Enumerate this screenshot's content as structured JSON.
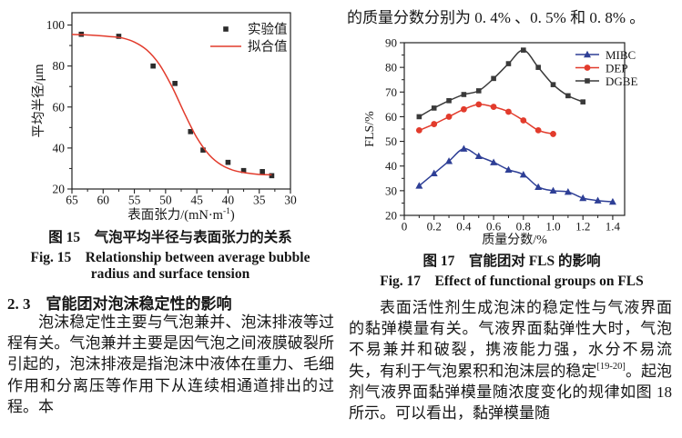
{
  "left_column": {
    "caption_cn": "图 15　气泡平均半径与表面张力的关系",
    "caption_en_line1": "Fig. 15　Relationship between average bubble",
    "caption_en_line2": "radius and surface tension",
    "heading": "2. 3　官能团对泡沫稳定性的影响",
    "para": "泡沫稳定性主要与气泡兼并、泡沫排液等过程有关。气泡兼并主要是因气泡之间液膜破裂所引起的，泡沫排液是指泡沫中液体在重力、毛细作用和分离压等作用下从连续相通道排出的过程。本"
  },
  "right_column": {
    "top_line": "的质量分数分别为 0. 4% 、0. 5% 和 0. 8% 。",
    "caption_cn": "图 17　官能团对 FLS 的影响",
    "caption_en": "Fig. 17　Effect of functional groups on FLS",
    "para_pre": "表面活性剂生成泡沫的稳定性与气液界面的黏弹模量有关。气液界面黏弹性大时，气泡不易兼并和破裂，携液能力强，水分不易流失，有利于气泡累积和泡沫层的稳定",
    "para_sup": "[19-20]",
    "para_post": "。起泡剂气液界面黏弹模量随浓度变化的规律如图 18 所示。可以看出，黏弹模量随"
  },
  "colors": {
    "red": "#e23b2c",
    "blue": "#2e3f96",
    "dark": "#3a3a3a",
    "axis": "#222222"
  },
  "chart_data": [
    {
      "type": "scatter",
      "title": "",
      "xlabel": {
        "pre": "表面张力/(mN·m",
        "sup": "-1",
        "post": ")"
      },
      "ylabel": "平均半径/μm",
      "xlim": [
        65,
        30
      ],
      "ylim": [
        20,
        106
      ],
      "xticks": [
        65,
        60,
        55,
        50,
        45,
        40,
        35,
        30
      ],
      "xtick_labels": [
        "65",
        "60",
        "55",
        "50",
        "45",
        "40",
        "35",
        "30"
      ],
      "xminor": [
        62.5,
        57.5,
        52.5,
        47.5,
        42.5,
        37.5,
        32.5
      ],
      "yticks": [
        20,
        40,
        60,
        80,
        100
      ],
      "ytick_labels": [
        "20",
        "40",
        "60",
        "80",
        "100"
      ],
      "yminor": [
        30,
        50,
        70,
        90
      ],
      "legend_position": "top-right",
      "grid": false,
      "series": [
        {
          "name": "实验值",
          "color": "#2b2b2b",
          "marker": "square",
          "line": false,
          "points": [
            [
              63.5,
              95.5
            ],
            [
              57.5,
              94.5
            ],
            [
              52,
              80
            ],
            [
              48.5,
              71.5
            ],
            [
              46,
              48
            ],
            [
              44,
              39
            ],
            [
              40,
              33
            ],
            [
              37.5,
              29
            ],
            [
              34.5,
              28.5
            ],
            [
              33,
              26.5
            ]
          ]
        },
        {
          "name": "拟合值",
          "color": "#e23b2c",
          "marker": null,
          "line": true,
          "points": [
            [
              65,
              95.4
            ],
            [
              62,
              95.1
            ],
            [
              59,
              94.4
            ],
            [
              57,
              93.7
            ],
            [
              55,
              91.7
            ],
            [
              53,
              87.8
            ],
            [
              51,
              80.8
            ],
            [
              49,
              70.1
            ],
            [
              47,
              57.1
            ],
            [
              45,
              45.1
            ],
            [
              43,
              36.6
            ],
            [
              41,
              31.6
            ],
            [
              39,
              29.0
            ],
            [
              37,
              27.8
            ],
            [
              35,
              27.1
            ],
            [
              33,
              26.9
            ]
          ]
        }
      ]
    },
    {
      "type": "line",
      "title": "",
      "xlabel": "质量分数/%",
      "ylabel": "FLS/%",
      "xlim": [
        0,
        1.48
      ],
      "ylim": [
        20,
        90
      ],
      "xticks": [
        0,
        0.2,
        0.4,
        0.6,
        0.8,
        1.0,
        1.2,
        1.4
      ],
      "xtick_labels": [
        "0",
        "0.2",
        "0.4",
        "0.6",
        "0.8",
        "1.0",
        "1.2",
        "1.4"
      ],
      "xminor": [
        0.1,
        0.3,
        0.5,
        0.7,
        0.9,
        1.1,
        1.3
      ],
      "yticks": [
        20,
        30,
        40,
        50,
        60,
        70,
        80,
        90
      ],
      "ytick_labels": [
        "20",
        "30",
        "40",
        "50",
        "60",
        "70",
        "80",
        "90"
      ],
      "yminor": [
        25,
        35,
        45,
        55,
        65,
        75,
        85
      ],
      "legend_position": "top-right",
      "grid": false,
      "series": [
        {
          "name": "MIBC",
          "color": "#2e3f96",
          "marker": "triangle",
          "line": true,
          "points": [
            [
              0.1,
              32
            ],
            [
              0.2,
              37
            ],
            [
              0.3,
              42
            ],
            [
              0.4,
              47
            ],
            [
              0.5,
              44
            ],
            [
              0.6,
              41.5
            ],
            [
              0.7,
              38.5
            ],
            [
              0.8,
              36.5
            ],
            [
              0.9,
              31.5
            ],
            [
              1.0,
              30
            ],
            [
              1.1,
              29.5
            ],
            [
              1.2,
              27
            ],
            [
              1.3,
              26
            ],
            [
              1.4,
              25.5
            ]
          ]
        },
        {
          "name": "DEP",
          "color": "#e23b2c",
          "marker": "circle",
          "line": true,
          "points": [
            [
              0.1,
              54.5
            ],
            [
              0.2,
              57
            ],
            [
              0.3,
              60
            ],
            [
              0.4,
              63
            ],
            [
              0.5,
              65
            ],
            [
              0.6,
              64
            ],
            [
              0.7,
              62
            ],
            [
              0.8,
              58.5
            ],
            [
              0.9,
              54.5
            ],
            [
              1.0,
              53
            ]
          ]
        },
        {
          "name": "DGBE",
          "color": "#3a3a3a",
          "marker": "square",
          "line": true,
          "points": [
            [
              0.1,
              60
            ],
            [
              0.2,
              63.5
            ],
            [
              0.3,
              66.5
            ],
            [
              0.4,
              69
            ],
            [
              0.5,
              70.5
            ],
            [
              0.6,
              75.5
            ],
            [
              0.7,
              81.5
            ],
            [
              0.8,
              87
            ],
            [
              0.9,
              80
            ],
            [
              1.0,
              73
            ],
            [
              1.1,
              68.5
            ],
            [
              1.2,
              66
            ]
          ]
        }
      ]
    }
  ]
}
